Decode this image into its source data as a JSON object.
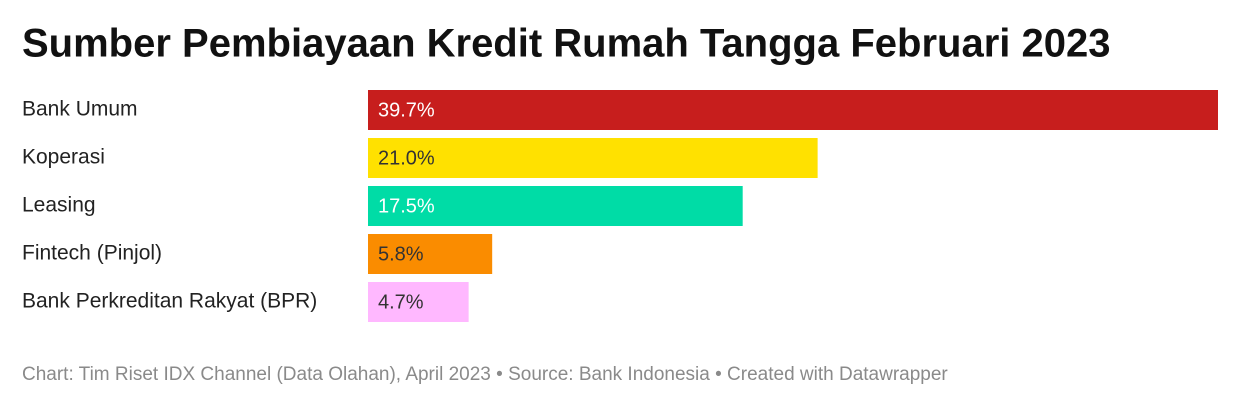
{
  "chart_data": {
    "type": "bar",
    "orientation": "horizontal",
    "title": "Sumber Pembiayaan Kredit Rumah Tangga Februari 2023",
    "categories": [
      "Bank Umum",
      "Koperasi",
      "Leasing",
      "Fintech (Pinjol)",
      "Bank Perkreditan Rakyat (BPR)"
    ],
    "values": [
      39.7,
      21.0,
      17.5,
      5.8,
      4.7
    ],
    "value_labels": [
      "39.7%",
      "21.0%",
      "17.5%",
      "5.8%",
      "4.7%"
    ],
    "colors": [
      "#c71e1d",
      "#ffe100",
      "#00dca6",
      "#fa8c00",
      "#ffb8ff"
    ],
    "footer": "Chart: Tim Riset IDX Channel (Data Olahan), April 2023 • Source: Bank Indonesia • Created with Datawrapper"
  }
}
